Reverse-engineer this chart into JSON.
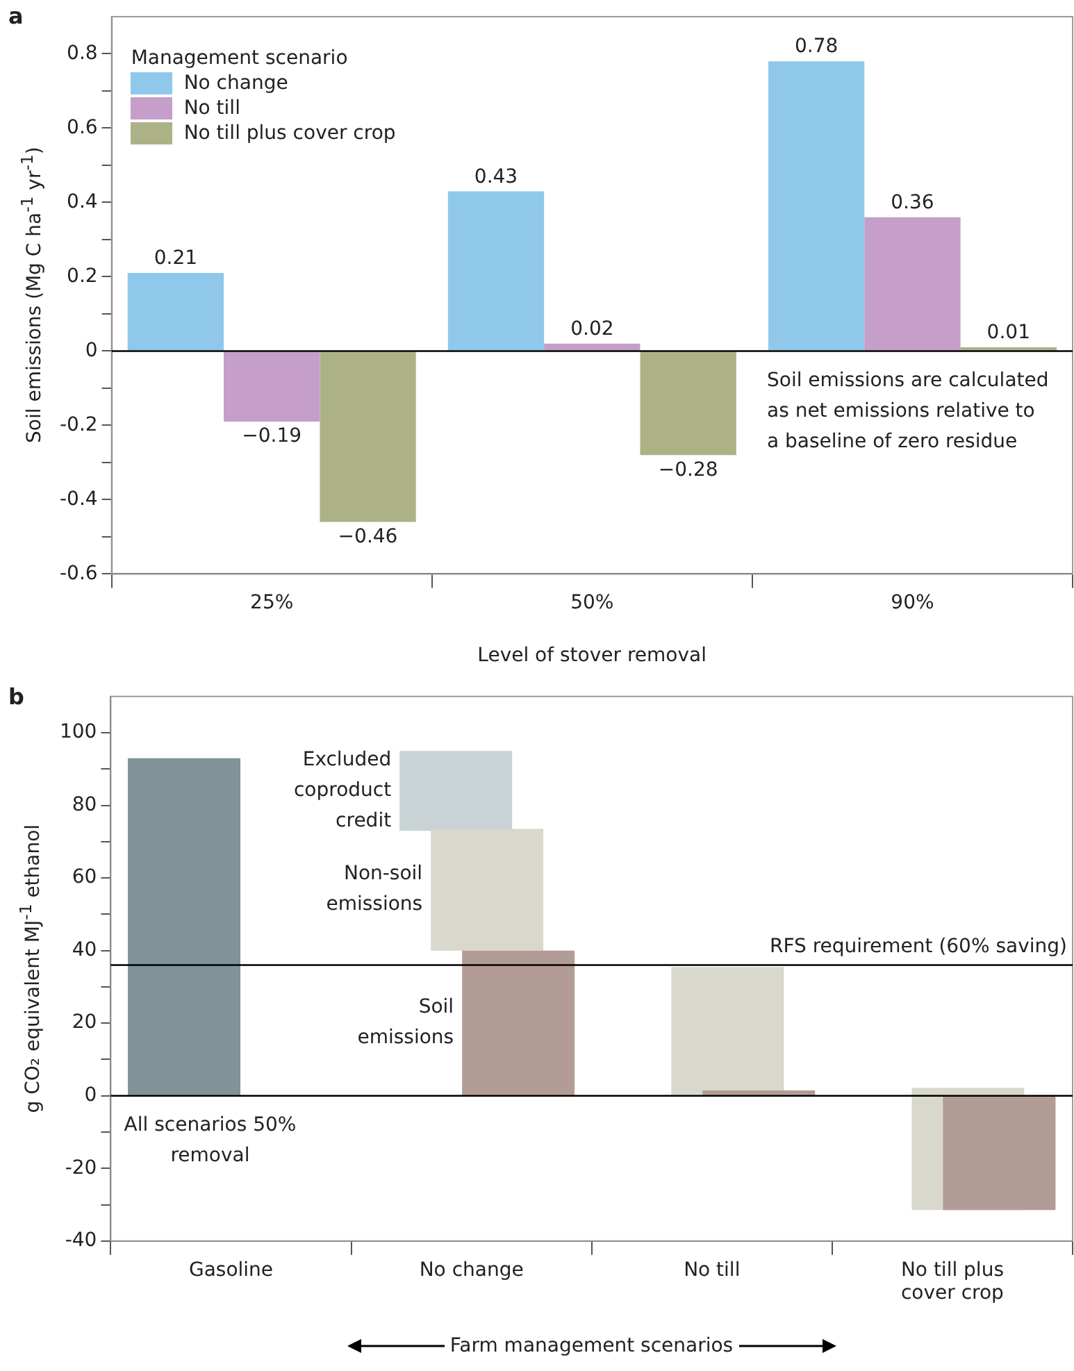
{
  "chart_data": [
    {
      "type": "bar",
      "title": "a",
      "xlabel": "Level of stover removal",
      "ylabel": "Soil emissions (Mg C ha$^{-1}$ yr$^{-1}$)",
      "legend_title": "Management scenario",
      "legend": "top left",
      "categories": [
        "25%",
        "50%",
        "90%"
      ],
      "series": [
        {
          "name": "No change",
          "color": "#8fc8eb",
          "values": [
            0.21,
            0.43,
            0.78
          ],
          "value_labels": [
            "0.21",
            "0.43",
            "0.78"
          ]
        },
        {
          "name": "No till",
          "color": "#c59ec9",
          "values": [
            -0.19,
            0.02,
            0.36
          ],
          "value_labels": [
            "−0.19",
            "0.02",
            "0.36"
          ]
        },
        {
          "name": "No till plus cover crop",
          "color": "#adb286",
          "values": [
            -0.46,
            -0.28,
            0.01
          ],
          "value_labels": [
            "−0.46",
            "−0.28",
            "0.01"
          ]
        }
      ],
      "ylim": [
        -0.6,
        0.9
      ],
      "yticks": [
        -0.6,
        {
          "value": -0.5,
          "label": null
        },
        -0.4,
        {
          "value": -0.3,
          "label": null
        },
        -0.2,
        {
          "value": -0.1,
          "label": null
        },
        0,
        {
          "value": 0.1,
          "label": null
        },
        0.2,
        {
          "value": 0.3,
          "label": null
        },
        0.4,
        {
          "value": 0.5,
          "label": null
        },
        0.6,
        {
          "value": 0.7,
          "label": null
        },
        0.8
      ],
      "ref_lines": [
        {
          "axis": "y",
          "value": 0,
          "color": "#000000"
        }
      ],
      "annotations": [
        "Soil emissions are calculated as net emissions relative to a baseline of zero residue"
      ],
      "grid": false
    },
    {
      "type": "bar",
      "title": "b",
      "xlabel": "Farm management scenarios",
      "ylabel": "g CO₂ equivalent MJ$^{-1}$ ethanol",
      "legend": false,
      "categories": [
        "Gasoline",
        "No change",
        "No till",
        "No till plus cover crop"
      ],
      "series": [
        {
          "color": "#7f9399",
          "values": [
            93,
            null,
            null,
            null
          ],
          "base": [
            0,
            null,
            null,
            null
          ]
        },
        {
          "name": "Excluded coproduct credit",
          "color": "#c9d2d5",
          "values": [
            null,
            22,
            null,
            null
          ],
          "base": [
            null,
            73,
            null,
            null
          ]
        },
        {
          "name": "Non-soil emissions",
          "color": "#d8d8cc",
          "values": [
            null,
            33.5,
            35.5,
            33.7
          ],
          "base": [
            null,
            40,
            0,
            -31.5
          ]
        },
        {
          "name": "Soil emissions",
          "color": "#b39c95",
          "values": [
            null,
            40,
            1.5,
            -31.5
          ],
          "base": [
            null,
            0,
            0,
            0
          ]
        }
      ],
      "ylim": [
        -40,
        110
      ],
      "yticks": [
        -40,
        {
          "value": -30,
          "label": null
        },
        -20,
        {
          "value": -10,
          "label": null
        },
        0,
        {
          "value": 10,
          "label": null
        },
        20,
        {
          "value": 30,
          "label": null
        },
        40,
        {
          "value": 50,
          "label": null
        },
        60,
        {
          "value": 70,
          "label": null
        },
        80,
        {
          "value": 90,
          "label": null
        },
        100
      ],
      "ref_lines": [
        {
          "axis": "y",
          "value": 0,
          "color": "#000000"
        },
        {
          "axis": "y",
          "value": 36,
          "label": "RFS requirement (60% saving)",
          "color": "#000000"
        }
      ],
      "annotations": [
        "All scenarios 50% removal"
      ],
      "grid": false
    }
  ]
}
